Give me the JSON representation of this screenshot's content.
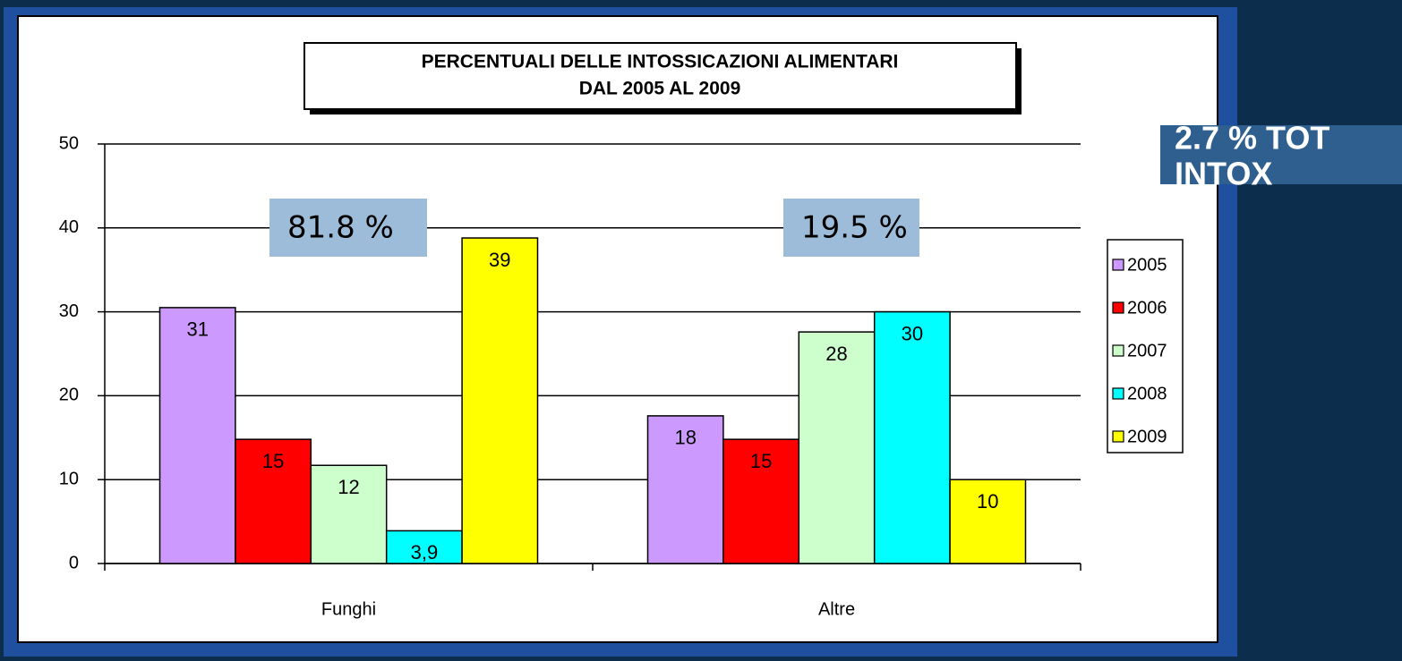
{
  "chart_data": {
    "type": "bar",
    "title_lines": [
      "PERCENTUALI DELLE INTOSSICAZIONI  ALIMENTARI",
      "DAL 2005 AL 2009"
    ],
    "categories": [
      "Funghi",
      "Altre"
    ],
    "series": [
      {
        "name": "2005",
        "color": "#cc99ff",
        "values": [
          30.5,
          17.6
        ],
        "value_labels": [
          "31",
          "18"
        ]
      },
      {
        "name": "2006",
        "color": "#ff0000",
        "values": [
          14.8,
          14.8
        ],
        "value_labels": [
          "15",
          "15"
        ]
      },
      {
        "name": "2007",
        "color": "#ccffcc",
        "values": [
          11.7,
          27.6
        ],
        "value_labels": [
          "12",
          "28"
        ]
      },
      {
        "name": "2008",
        "color": "#00ffff",
        "values": [
          3.9,
          30
        ],
        "value_labels": [
          "3,9",
          "30"
        ]
      },
      {
        "name": "2009",
        "color": "#ffff00",
        "values": [
          38.8,
          10
        ],
        "value_labels": [
          "39",
          "10"
        ]
      }
    ],
    "ylim": [
      0,
      50
    ],
    "yticks": [
      0,
      10,
      20,
      30,
      40,
      50
    ],
    "grid": true,
    "legend": "right",
    "annotations": [
      "81.8 %",
      "19.5 %"
    ],
    "side_note": [
      "2.7 % TOT",
      "INTOX"
    ]
  }
}
